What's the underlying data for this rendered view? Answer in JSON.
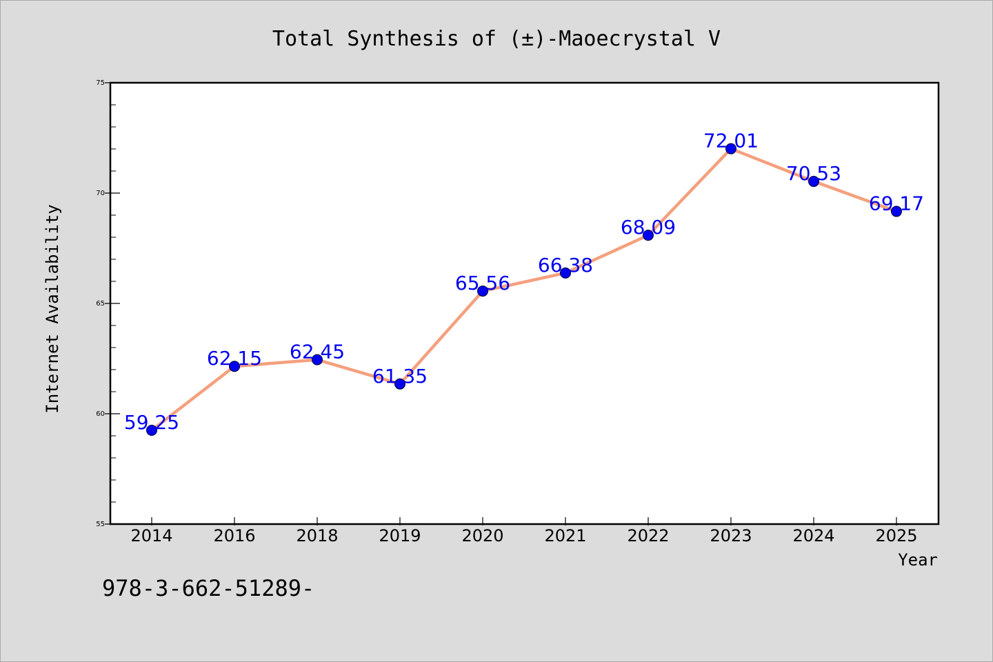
{
  "chart_data": {
    "type": "line",
    "title": "Total Synthesis of (±)-Maoecrystal V",
    "xlabel": "Year",
    "ylabel": "Internet Availability",
    "categories": [
      "2014",
      "2016",
      "2018",
      "2019",
      "2020",
      "2021",
      "2022",
      "2023",
      "2024",
      "2025"
    ],
    "series": [
      {
        "values": [
          59.25,
          62.15,
          62.45,
          61.35,
          65.56,
          66.38,
          68.09,
          72.01,
          70.53,
          69.17
        ],
        "data_labels": [
          "59.25",
          "62.15",
          "62.45",
          "61.35",
          "65.56",
          "66.38",
          "68.09",
          "72.01",
          "70.53",
          "69.17"
        ],
        "line_color": "#f4a07e",
        "marker_color": "#0000ee"
      }
    ],
    "ylim": [
      55,
      75
    ],
    "yticks": [
      "55",
      "60",
      "65",
      "70",
      "75"
    ],
    "grid": false,
    "legend": "none",
    "label_color": "#0000ee"
  },
  "footer_text": "978-3-662-51289-"
}
